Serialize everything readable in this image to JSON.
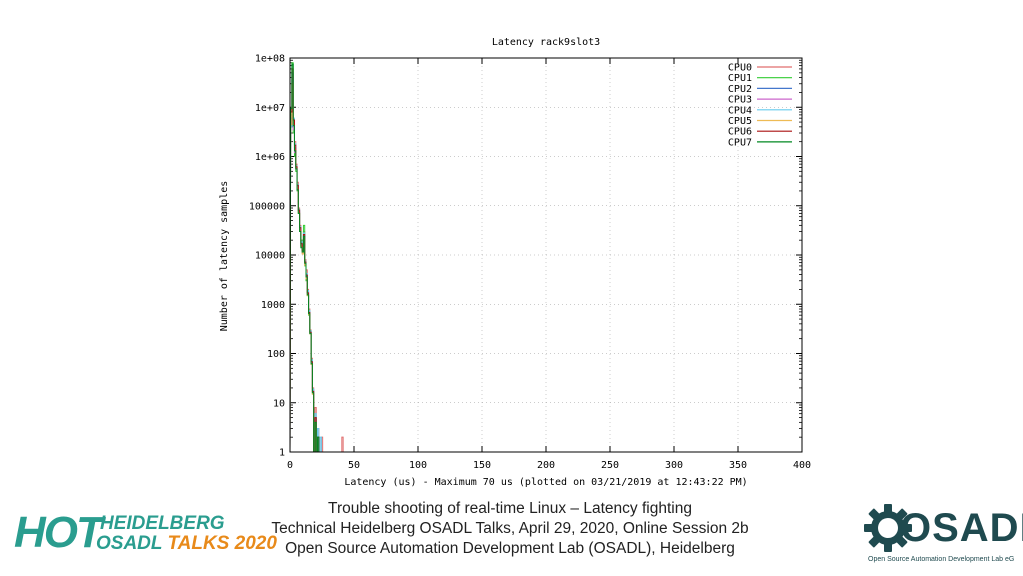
{
  "chart_data": {
    "type": "line",
    "title": "Latency rack9slot3",
    "xlabel": "Latency (us) - Maximum 70 us (plotted on 03/21/2019 at 12:43:22 PM)",
    "ylabel": "Number of latency samples",
    "xlim": [
      0,
      400
    ],
    "ylim": [
      1,
      100000000
    ],
    "yscale": "log",
    "xticks": [
      "0",
      "50",
      "100",
      "150",
      "200",
      "250",
      "300",
      "350",
      "400"
    ],
    "yticks": [
      "1",
      "10",
      "100",
      "1000",
      "10000",
      "100000",
      "1e+06",
      "1e+07",
      "1e+08"
    ],
    "legend_position": "top-right",
    "series": [
      {
        "name": "CPU0",
        "color": "#e06d6d",
        "x": [
          1,
          2,
          3,
          4,
          5,
          6,
          7,
          8,
          9,
          10,
          11,
          12,
          13,
          14,
          15,
          16,
          17,
          18,
          20,
          22,
          25,
          30,
          35,
          41,
          48,
          55,
          62,
          68
        ],
        "y": [
          9000000,
          30000000,
          5000000,
          2000000,
          700000,
          300000,
          90000,
          40000,
          20000,
          15000,
          30000,
          8000,
          5000,
          2000,
          800,
          300,
          80,
          20,
          8,
          3,
          2,
          1,
          1,
          2,
          1,
          1,
          1,
          1
        ]
      },
      {
        "name": "CPU1",
        "color": "#33cc33",
        "x": [
          1,
          2,
          3,
          4,
          5,
          6,
          7,
          8,
          9,
          10,
          11,
          12,
          13,
          14,
          15,
          16,
          17,
          18,
          20,
          22,
          25,
          30,
          35,
          40,
          45,
          50,
          55,
          60,
          65,
          70
        ],
        "y": [
          7000000,
          80000000,
          3000000,
          1000000,
          500000,
          200000,
          70000,
          30000,
          15000,
          20000,
          40000,
          6000,
          3000,
          1500,
          600,
          250,
          60,
          15,
          4,
          2,
          1,
          1,
          1,
          1,
          1,
          1,
          1,
          1,
          1,
          1
        ]
      },
      {
        "name": "CPU2",
        "color": "#4477cc",
        "x": [
          1,
          2,
          3,
          4,
          5,
          6,
          7,
          8,
          9,
          10,
          11,
          12,
          13,
          14,
          15,
          16,
          17,
          18,
          20,
          22,
          25,
          28
        ],
        "y": [
          6000000,
          50000000,
          4000000,
          1500000,
          600000,
          250000,
          80000,
          35000,
          18000,
          12000,
          25000,
          7000,
          4000,
          1800,
          700,
          280,
          70,
          18,
          5,
          2,
          1,
          1
        ]
      },
      {
        "name": "CPU3",
        "color": "#cc66cc",
        "x": [
          1,
          2,
          3,
          4,
          5,
          6,
          7,
          8,
          9,
          10,
          11,
          12,
          13,
          14,
          15,
          16,
          17,
          18,
          20,
          22,
          26
        ],
        "y": [
          5000000,
          40000000,
          3500000,
          1200000,
          550000,
          220000,
          75000,
          32000,
          16000,
          11000,
          22000,
          6500,
          3500,
          1600,
          650,
          260,
          65,
          16,
          4,
          2,
          1
        ]
      },
      {
        "name": "CPU4",
        "color": "#66ccee",
        "x": [
          1,
          2,
          3,
          4,
          5,
          6,
          7,
          8,
          9,
          10,
          11,
          12,
          13,
          14,
          15,
          16,
          17,
          18,
          20,
          22,
          24,
          27
        ],
        "y": [
          4000000,
          35000000,
          6000000,
          1800000,
          650000,
          270000,
          85000,
          38000,
          19000,
          13000,
          28000,
          7500,
          4200,
          1900,
          750,
          290,
          75,
          19,
          6,
          3,
          2,
          1
        ]
      },
      {
        "name": "CPU5",
        "color": "#eebb55",
        "x": [
          1,
          2,
          3,
          4,
          5,
          6,
          7,
          8,
          9,
          10,
          11,
          12,
          13,
          14,
          15,
          16,
          17,
          18,
          20,
          23
        ],
        "y": [
          4500000,
          30000000,
          4500000,
          1400000,
          580000,
          230000,
          72000,
          31000,
          15500,
          10500,
          21000,
          6200,
          3300,
          1500,
          620,
          250,
          60,
          15,
          4,
          1
        ]
      },
      {
        "name": "CPU6",
        "color": "#aa1111",
        "x": [
          1,
          2,
          3,
          4,
          5,
          6,
          7,
          8,
          9,
          10,
          11,
          12,
          13,
          14,
          15,
          16,
          17,
          18,
          20,
          22,
          25
        ],
        "y": [
          8000000,
          60000000,
          5500000,
          1700000,
          620000,
          260000,
          82000,
          36000,
          17000,
          12500,
          26000,
          7200,
          3900,
          1700,
          680,
          270,
          68,
          17,
          5,
          2,
          1
        ]
      },
      {
        "name": "CPU7",
        "color": "#008822",
        "x": [
          1,
          2,
          3,
          4,
          5,
          6,
          7,
          8,
          9,
          10,
          11,
          12,
          13,
          14,
          15,
          16,
          17,
          18,
          20,
          22,
          24
        ],
        "y": [
          9500000,
          75000000,
          4200000,
          1300000,
          560000,
          210000,
          70000,
          30000,
          14000,
          11500,
          24000,
          6800,
          3600,
          1550,
          640,
          255,
          62,
          16,
          4,
          2,
          1
        ]
      }
    ]
  },
  "footer": {
    "line1": "Trouble shooting of real-time Linux – Latency fighting",
    "line2": "Technical Heidelberg OSADL Talks, April 29, 2020, Online Session 2b",
    "line3": "Open Source Automation Development Lab (OSADL), Heidelberg"
  },
  "hot_logo": {
    "big": "HOT",
    "line1": "HEIDELBERG",
    "line2_prefix": "OSADL ",
    "line2_mid": "TALKS ",
    "line2_year": "2020",
    "color_teal": "#2a9d8f",
    "color_orange": "#e88a1a"
  },
  "osadl_logo": {
    "word": "OSADL",
    "tagline": "Open Source Automation Development Lab eG",
    "color": "#1f4a4f"
  }
}
